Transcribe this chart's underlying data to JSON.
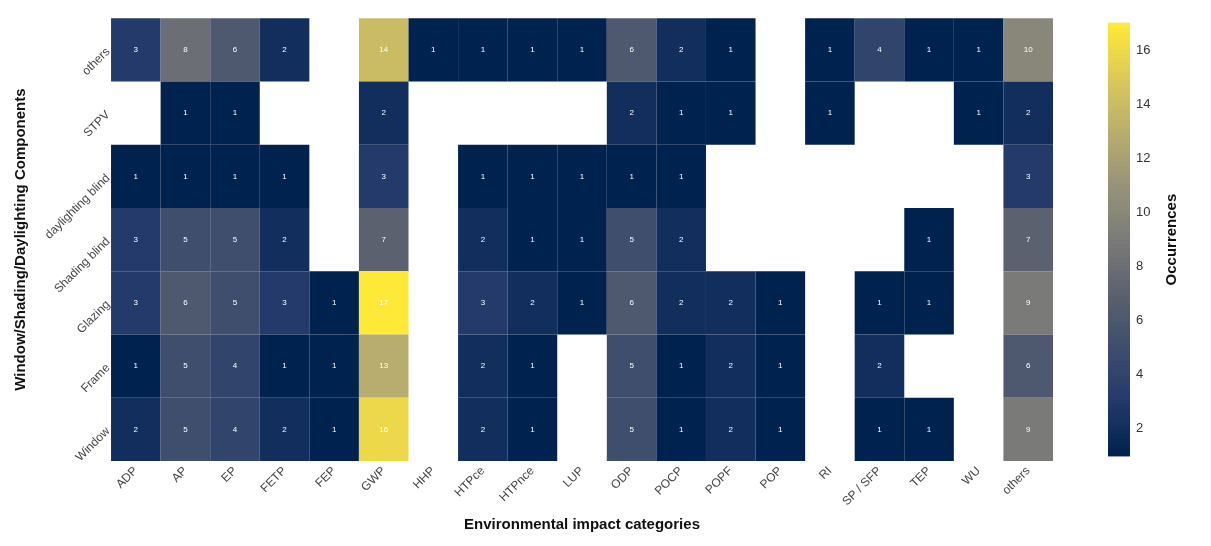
{
  "chart_data": {
    "type": "heatmap",
    "xlabel": "Environmental impact categories",
    "ylabel": "Window/Shading/Daylighting Components",
    "clabel": "Occurrences",
    "categories": [
      "ADP",
      "AP",
      "EP",
      "FETP",
      "FEP",
      "GWP",
      "HHP",
      "HTPce",
      "HTPnce",
      "LUP",
      "ODP",
      "POCP",
      "POPF",
      "POP",
      "RI",
      "SP / SFP",
      "TEP",
      "WU",
      "others"
    ],
    "y_categories": [
      "others",
      "STPV",
      "daylighting blind",
      "Shading blind",
      "Glazing",
      "Frame",
      "Window"
    ],
    "cells": [
      [
        3,
        8,
        6,
        2,
        null,
        14,
        1,
        1,
        1,
        1,
        6,
        2,
        1,
        null,
        1,
        4,
        1,
        1,
        10
      ],
      [
        null,
        1,
        1,
        null,
        null,
        2,
        null,
        null,
        null,
        null,
        2,
        1,
        1,
        null,
        1,
        null,
        null,
        1,
        2
      ],
      [
        1,
        1,
        1,
        1,
        null,
        3,
        null,
        1,
        1,
        1,
        1,
        1,
        null,
        null,
        null,
        null,
        null,
        null,
        3
      ],
      [
        3,
        5,
        5,
        2,
        null,
        7,
        null,
        2,
        1,
        1,
        5,
        2,
        null,
        null,
        null,
        null,
        1,
        null,
        7
      ],
      [
        3,
        6,
        5,
        3,
        1,
        17,
        null,
        3,
        2,
        1,
        6,
        2,
        2,
        1,
        null,
        1,
        1,
        null,
        9
      ],
      [
        1,
        5,
        4,
        1,
        1,
        13,
        null,
        2,
        1,
        null,
        5,
        1,
        2,
        1,
        null,
        2,
        null,
        null,
        6
      ],
      [
        2,
        5,
        4,
        2,
        1,
        16,
        null,
        2,
        1,
        null,
        5,
        1,
        2,
        1,
        null,
        1,
        1,
        null,
        9
      ]
    ],
    "clim": [
      1,
      17
    ],
    "cticks": [
      2,
      4,
      6,
      8,
      10,
      12,
      14,
      16
    ],
    "data_labels": true
  }
}
